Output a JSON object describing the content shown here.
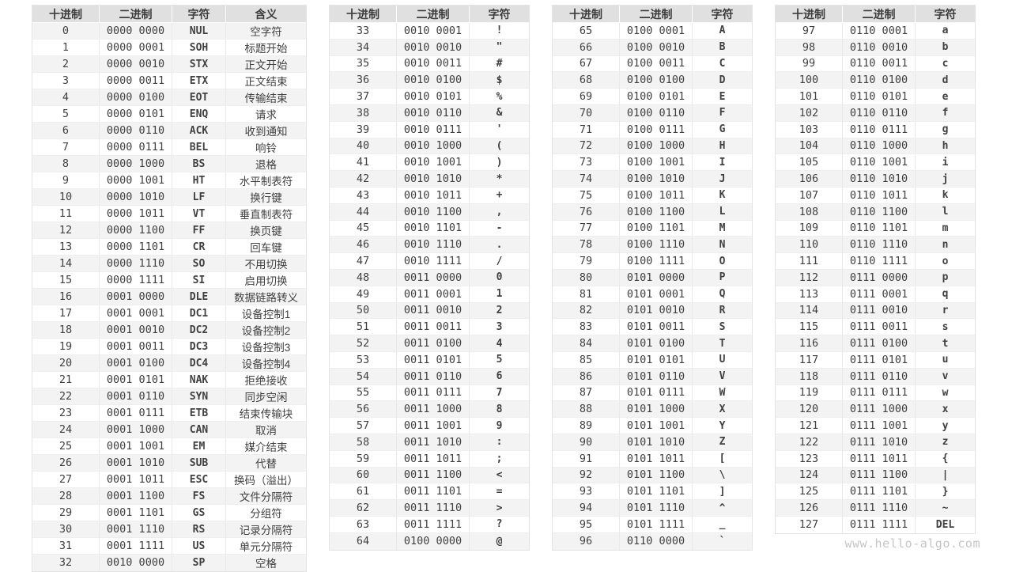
{
  "page": {
    "watermark": "www.hello-algo.com"
  },
  "tables": [
    {
      "name": "ascii-control-characters",
      "headers": [
        "十进制",
        "二进制",
        "字符",
        "含义"
      ],
      "col_keys": [
        "dec",
        "bin",
        "char",
        "meaning"
      ],
      "rows": [
        {
          "dec": 0,
          "bin": "0000 0000",
          "char": "NUL",
          "meaning": "空字符"
        },
        {
          "dec": 1,
          "bin": "0000 0001",
          "char": "SOH",
          "meaning": "标题开始"
        },
        {
          "dec": 2,
          "bin": "0000 0010",
          "char": "STX",
          "meaning": "正文开始"
        },
        {
          "dec": 3,
          "bin": "0000 0011",
          "char": "ETX",
          "meaning": "正文结束"
        },
        {
          "dec": 4,
          "bin": "0000 0100",
          "char": "EOT",
          "meaning": "传输结束"
        },
        {
          "dec": 5,
          "bin": "0000 0101",
          "char": "ENQ",
          "meaning": "请求"
        },
        {
          "dec": 6,
          "bin": "0000 0110",
          "char": "ACK",
          "meaning": "收到通知"
        },
        {
          "dec": 7,
          "bin": "0000 0111",
          "char": "BEL",
          "meaning": "响铃"
        },
        {
          "dec": 8,
          "bin": "0000 1000",
          "char": "BS",
          "meaning": "退格"
        },
        {
          "dec": 9,
          "bin": "0000 1001",
          "char": "HT",
          "meaning": "水平制表符"
        },
        {
          "dec": 10,
          "bin": "0000 1010",
          "char": "LF",
          "meaning": "换行键"
        },
        {
          "dec": 11,
          "bin": "0000 1011",
          "char": "VT",
          "meaning": "垂直制表符"
        },
        {
          "dec": 12,
          "bin": "0000 1100",
          "char": "FF",
          "meaning": "换页键"
        },
        {
          "dec": 13,
          "bin": "0000 1101",
          "char": "CR",
          "meaning": "回车键"
        },
        {
          "dec": 14,
          "bin": "0000 1110",
          "char": "SO",
          "meaning": "不用切换"
        },
        {
          "dec": 15,
          "bin": "0000 1111",
          "char": "SI",
          "meaning": "启用切换"
        },
        {
          "dec": 16,
          "bin": "0001 0000",
          "char": "DLE",
          "meaning": "数据链路转义"
        },
        {
          "dec": 17,
          "bin": "0001 0001",
          "char": "DC1",
          "meaning": "设备控制1"
        },
        {
          "dec": 18,
          "bin": "0001 0010",
          "char": "DC2",
          "meaning": "设备控制2"
        },
        {
          "dec": 19,
          "bin": "0001 0011",
          "char": "DC3",
          "meaning": "设备控制3"
        },
        {
          "dec": 20,
          "bin": "0001 0100",
          "char": "DC4",
          "meaning": "设备控制4"
        },
        {
          "dec": 21,
          "bin": "0001 0101",
          "char": "NAK",
          "meaning": "拒绝接收"
        },
        {
          "dec": 22,
          "bin": "0001 0110",
          "char": "SYN",
          "meaning": "同步空闲"
        },
        {
          "dec": 23,
          "bin": "0001 0111",
          "char": "ETB",
          "meaning": "结束传输块"
        },
        {
          "dec": 24,
          "bin": "0001 1000",
          "char": "CAN",
          "meaning": "取消"
        },
        {
          "dec": 25,
          "bin": "0001 1001",
          "char": "EM",
          "meaning": "媒介结束"
        },
        {
          "dec": 26,
          "bin": "0001 1010",
          "char": "SUB",
          "meaning": "代替"
        },
        {
          "dec": 27,
          "bin": "0001 1011",
          "char": "ESC",
          "meaning": "换码（溢出）"
        },
        {
          "dec": 28,
          "bin": "0001 1100",
          "char": "FS",
          "meaning": "文件分隔符"
        },
        {
          "dec": 29,
          "bin": "0001 1101",
          "char": "GS",
          "meaning": "分组符"
        },
        {
          "dec": 30,
          "bin": "0001 1110",
          "char": "RS",
          "meaning": "记录分隔符"
        },
        {
          "dec": 31,
          "bin": "0001 1111",
          "char": "US",
          "meaning": "单元分隔符"
        },
        {
          "dec": 32,
          "bin": "0010 0000",
          "char": "SP",
          "meaning": "空格"
        }
      ]
    },
    {
      "name": "ascii-punctuation-digits",
      "headers": [
        "十进制",
        "二进制",
        "字符"
      ],
      "col_keys": [
        "dec",
        "bin",
        "char"
      ],
      "rows": [
        {
          "dec": 33,
          "bin": "0010 0001",
          "char": "!"
        },
        {
          "dec": 34,
          "bin": "0010 0010",
          "char": "\""
        },
        {
          "dec": 35,
          "bin": "0010 0011",
          "char": "#"
        },
        {
          "dec": 36,
          "bin": "0010 0100",
          "char": "$"
        },
        {
          "dec": 37,
          "bin": "0010 0101",
          "char": "%"
        },
        {
          "dec": 38,
          "bin": "0010 0110",
          "char": "&"
        },
        {
          "dec": 39,
          "bin": "0010 0111",
          "char": "'"
        },
        {
          "dec": 40,
          "bin": "0010 1000",
          "char": "("
        },
        {
          "dec": 41,
          "bin": "0010 1001",
          "char": ")"
        },
        {
          "dec": 42,
          "bin": "0010 1010",
          "char": "*"
        },
        {
          "dec": 43,
          "bin": "0010 1011",
          "char": "+"
        },
        {
          "dec": 44,
          "bin": "0010 1100",
          "char": ","
        },
        {
          "dec": 45,
          "bin": "0010 1101",
          "char": "-"
        },
        {
          "dec": 46,
          "bin": "0010 1110",
          "char": "."
        },
        {
          "dec": 47,
          "bin": "0010 1111",
          "char": "/"
        },
        {
          "dec": 48,
          "bin": "0011 0000",
          "char": "0"
        },
        {
          "dec": 49,
          "bin": "0011 0001",
          "char": "1"
        },
        {
          "dec": 50,
          "bin": "0011 0010",
          "char": "2"
        },
        {
          "dec": 51,
          "bin": "0011 0011",
          "char": "3"
        },
        {
          "dec": 52,
          "bin": "0011 0100",
          "char": "4"
        },
        {
          "dec": 53,
          "bin": "0011 0101",
          "char": "5"
        },
        {
          "dec": 54,
          "bin": "0011 0110",
          "char": "6"
        },
        {
          "dec": 55,
          "bin": "0011 0111",
          "char": "7"
        },
        {
          "dec": 56,
          "bin": "0011 1000",
          "char": "8"
        },
        {
          "dec": 57,
          "bin": "0011 1001",
          "char": "9"
        },
        {
          "dec": 58,
          "bin": "0011 1010",
          "char": ":"
        },
        {
          "dec": 59,
          "bin": "0011 1011",
          "char": ";"
        },
        {
          "dec": 60,
          "bin": "0011 1100",
          "char": "<"
        },
        {
          "dec": 61,
          "bin": "0011 1101",
          "char": "="
        },
        {
          "dec": 62,
          "bin": "0011 1110",
          "char": ">"
        },
        {
          "dec": 63,
          "bin": "0011 1111",
          "char": "?"
        },
        {
          "dec": 64,
          "bin": "0100 0000",
          "char": "@"
        }
      ]
    },
    {
      "name": "ascii-uppercase",
      "headers": [
        "十进制",
        "二进制",
        "字符"
      ],
      "col_keys": [
        "dec",
        "bin",
        "char"
      ],
      "rows": [
        {
          "dec": 65,
          "bin": "0100 0001",
          "char": "A"
        },
        {
          "dec": 66,
          "bin": "0100 0010",
          "char": "B"
        },
        {
          "dec": 67,
          "bin": "0100 0011",
          "char": "C"
        },
        {
          "dec": 68,
          "bin": "0100 0100",
          "char": "D"
        },
        {
          "dec": 69,
          "bin": "0100 0101",
          "char": "E"
        },
        {
          "dec": 70,
          "bin": "0100 0110",
          "char": "F"
        },
        {
          "dec": 71,
          "bin": "0100 0111",
          "char": "G"
        },
        {
          "dec": 72,
          "bin": "0100 1000",
          "char": "H"
        },
        {
          "dec": 73,
          "bin": "0100 1001",
          "char": "I"
        },
        {
          "dec": 74,
          "bin": "0100 1010",
          "char": "J"
        },
        {
          "dec": 75,
          "bin": "0100 1011",
          "char": "K"
        },
        {
          "dec": 76,
          "bin": "0100 1100",
          "char": "L"
        },
        {
          "dec": 77,
          "bin": "0100 1101",
          "char": "M"
        },
        {
          "dec": 78,
          "bin": "0100 1110",
          "char": "N"
        },
        {
          "dec": 79,
          "bin": "0100 1111",
          "char": "O"
        },
        {
          "dec": 80,
          "bin": "0101 0000",
          "char": "P"
        },
        {
          "dec": 81,
          "bin": "0101 0001",
          "char": "Q"
        },
        {
          "dec": 82,
          "bin": "0101 0010",
          "char": "R"
        },
        {
          "dec": 83,
          "bin": "0101 0011",
          "char": "S"
        },
        {
          "dec": 84,
          "bin": "0101 0100",
          "char": "T"
        },
        {
          "dec": 85,
          "bin": "0101 0101",
          "char": "U"
        },
        {
          "dec": 86,
          "bin": "0101 0110",
          "char": "V"
        },
        {
          "dec": 87,
          "bin": "0101 0111",
          "char": "W"
        },
        {
          "dec": 88,
          "bin": "0101 1000",
          "char": "X"
        },
        {
          "dec": 89,
          "bin": "0101 1001",
          "char": "Y"
        },
        {
          "dec": 90,
          "bin": "0101 1010",
          "char": "Z"
        },
        {
          "dec": 91,
          "bin": "0101 1011",
          "char": "["
        },
        {
          "dec": 92,
          "bin": "0101 1100",
          "char": "\\"
        },
        {
          "dec": 93,
          "bin": "0101 1101",
          "char": "]"
        },
        {
          "dec": 94,
          "bin": "0101 1110",
          "char": "^"
        },
        {
          "dec": 95,
          "bin": "0101 1111",
          "char": "_"
        },
        {
          "dec": 96,
          "bin": "0110 0000",
          "char": "`"
        }
      ]
    },
    {
      "name": "ascii-lowercase",
      "headers": [
        "十进制",
        "二进制",
        "字符"
      ],
      "col_keys": [
        "dec",
        "bin",
        "char"
      ],
      "rows": [
        {
          "dec": 97,
          "bin": "0110 0001",
          "char": "a"
        },
        {
          "dec": 98,
          "bin": "0110 0010",
          "char": "b"
        },
        {
          "dec": 99,
          "bin": "0110 0011",
          "char": "c"
        },
        {
          "dec": 100,
          "bin": "0110 0100",
          "char": "d"
        },
        {
          "dec": 101,
          "bin": "0110 0101",
          "char": "e"
        },
        {
          "dec": 102,
          "bin": "0110 0110",
          "char": "f"
        },
        {
          "dec": 103,
          "bin": "0110 0111",
          "char": "g"
        },
        {
          "dec": 104,
          "bin": "0110 1000",
          "char": "h"
        },
        {
          "dec": 105,
          "bin": "0110 1001",
          "char": "i"
        },
        {
          "dec": 106,
          "bin": "0110 1010",
          "char": "j"
        },
        {
          "dec": 107,
          "bin": "0110 1011",
          "char": "k"
        },
        {
          "dec": 108,
          "bin": "0110 1100",
          "char": "l"
        },
        {
          "dec": 109,
          "bin": "0110 1101",
          "char": "m"
        },
        {
          "dec": 110,
          "bin": "0110 1110",
          "char": "n"
        },
        {
          "dec": 111,
          "bin": "0110 1111",
          "char": "o"
        },
        {
          "dec": 112,
          "bin": "0111 0000",
          "char": "p"
        },
        {
          "dec": 113,
          "bin": "0111 0001",
          "char": "q"
        },
        {
          "dec": 114,
          "bin": "0111 0010",
          "char": "r"
        },
        {
          "dec": 115,
          "bin": "0111 0011",
          "char": "s"
        },
        {
          "dec": 116,
          "bin": "0111 0100",
          "char": "t"
        },
        {
          "dec": 117,
          "bin": "0111 0101",
          "char": "u"
        },
        {
          "dec": 118,
          "bin": "0111 0110",
          "char": "v"
        },
        {
          "dec": 119,
          "bin": "0111 0111",
          "char": "w"
        },
        {
          "dec": 120,
          "bin": "0111 1000",
          "char": "x"
        },
        {
          "dec": 121,
          "bin": "0111 1001",
          "char": "y"
        },
        {
          "dec": 122,
          "bin": "0111 1010",
          "char": "z"
        },
        {
          "dec": 123,
          "bin": "0111 1011",
          "char": "{"
        },
        {
          "dec": 124,
          "bin": "0111 1100",
          "char": "|"
        },
        {
          "dec": 125,
          "bin": "0111 1101",
          "char": "}"
        },
        {
          "dec": 126,
          "bin": "0111 1110",
          "char": "~"
        },
        {
          "dec": 127,
          "bin": "0111 1111",
          "char": "DEL"
        }
      ]
    }
  ]
}
